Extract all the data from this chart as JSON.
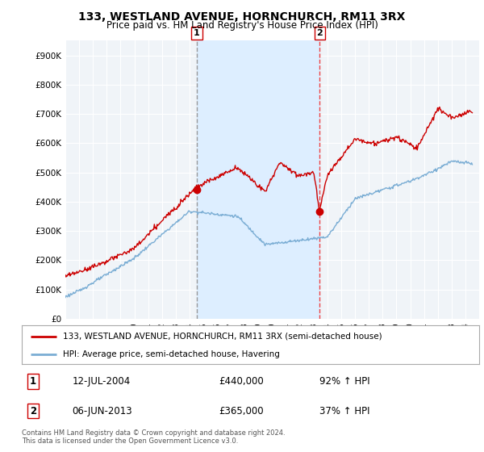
{
  "title": "133, WESTLAND AVENUE, HORNCHURCH, RM11 3RX",
  "subtitle": "Price paid vs. HM Land Registry's House Price Index (HPI)",
  "ylim": [
    0,
    950000
  ],
  "yticks": [
    0,
    100000,
    200000,
    300000,
    400000,
    500000,
    600000,
    700000,
    800000,
    900000
  ],
  "ytick_labels": [
    "£0",
    "£100K",
    "£200K",
    "£300K",
    "£400K",
    "£500K",
    "£600K",
    "£700K",
    "£800K",
    "£900K"
  ],
  "hpi_color": "#7aadd4",
  "price_color": "#cc0000",
  "marker_color": "#cc0000",
  "vline1_color": "#999999",
  "vline2_color": "#ee4444",
  "shade_color": "#ddeeff",
  "annotation_box_color": "#cc0000",
  "legend_label_price": "133, WESTLAND AVENUE, HORNCHURCH, RM11 3RX (semi-detached house)",
  "legend_label_hpi": "HPI: Average price, semi-detached house, Havering",
  "sale1_date": "12-JUL-2004",
  "sale1_price": "£440,000",
  "sale1_hpi": "92% ↑ HPI",
  "sale1_year": 2004.53,
  "sale1_value": 440000,
  "sale2_date": "06-JUN-2013",
  "sale2_price": "£365,000",
  "sale2_hpi": "37% ↑ HPI",
  "sale2_year": 2013.43,
  "sale2_value": 365000,
  "footer": "Contains HM Land Registry data © Crown copyright and database right 2024.\nThis data is licensed under the Open Government Licence v3.0.",
  "background_color": "#ffffff",
  "plot_bg_color": "#f0f4f8"
}
